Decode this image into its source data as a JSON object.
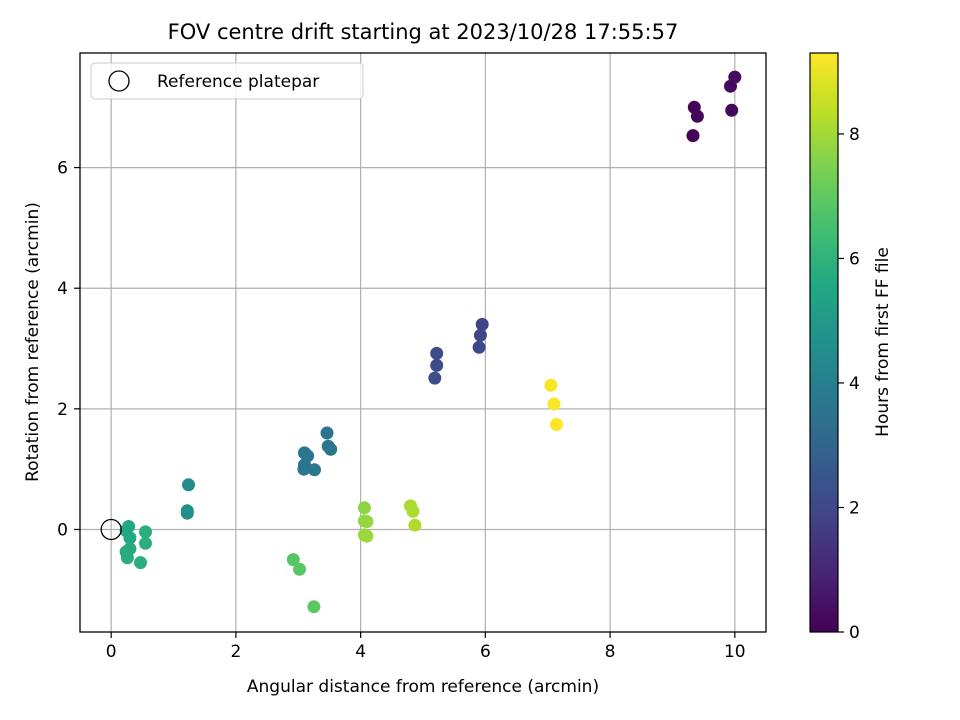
{
  "chart_data": {
    "type": "scatter",
    "title": "FOV centre drift starting at 2023/10/28 17:55:57",
    "xlabel": "Angular distance from reference (arcmin)",
    "ylabel": "Rotation from reference (arcmin)",
    "xlim": [
      -0.5,
      10.5
    ],
    "ylim": [
      -1.7,
      7.9
    ],
    "xticks": [
      0,
      2,
      4,
      6,
      8,
      10
    ],
    "yticks": [
      0,
      2,
      4,
      6
    ],
    "grid": true,
    "legend": {
      "position": "top-left",
      "entries": [
        "Reference platepar"
      ]
    },
    "reference_point": {
      "name": "Reference platepar",
      "x": 0,
      "y": 0
    },
    "colorbar": {
      "label": "Hours from first FF file",
      "range": [
        0,
        9.3
      ],
      "ticks": [
        0,
        2,
        4,
        6,
        8
      ],
      "colormap": "viridis"
    },
    "points": [
      {
        "x": 9.33,
        "y": 6.53,
        "t": 0.05
      },
      {
        "x": 9.35,
        "y": 7.0,
        "t": 0.1
      },
      {
        "x": 9.4,
        "y": 6.85,
        "t": 0.15
      },
      {
        "x": 9.95,
        "y": 6.95,
        "t": 0.2
      },
      {
        "x": 9.93,
        "y": 7.35,
        "t": 0.25
      },
      {
        "x": 10.0,
        "y": 7.5,
        "t": 0.3
      },
      {
        "x": 5.95,
        "y": 3.4,
        "t": 1.9
      },
      {
        "x": 5.92,
        "y": 3.22,
        "t": 1.95
      },
      {
        "x": 5.9,
        "y": 3.02,
        "t": 2.0
      },
      {
        "x": 5.22,
        "y": 2.92,
        "t": 2.1
      },
      {
        "x": 5.22,
        "y": 2.72,
        "t": 2.15
      },
      {
        "x": 5.19,
        "y": 2.51,
        "t": 2.2
      },
      {
        "x": 3.46,
        "y": 1.6,
        "t": 3.5
      },
      {
        "x": 3.1,
        "y": 1.27,
        "t": 3.55
      },
      {
        "x": 3.15,
        "y": 1.22,
        "t": 3.6
      },
      {
        "x": 3.48,
        "y": 1.38,
        "t": 3.6
      },
      {
        "x": 3.52,
        "y": 1.33,
        "t": 3.65
      },
      {
        "x": 3.1,
        "y": 1.07,
        "t": 3.65
      },
      {
        "x": 3.09,
        "y": 1.0,
        "t": 3.7
      },
      {
        "x": 3.26,
        "y": 0.99,
        "t": 3.7
      },
      {
        "x": 1.24,
        "y": 0.74,
        "t": 4.5
      },
      {
        "x": 1.22,
        "y": 0.31,
        "t": 4.55
      },
      {
        "x": 1.22,
        "y": 0.27,
        "t": 4.6
      },
      {
        "x": 0.28,
        "y": 0.05,
        "t": 5.5
      },
      {
        "x": 0.24,
        "y": -0.02,
        "t": 5.55
      },
      {
        "x": 0.3,
        "y": -0.14,
        "t": 5.6
      },
      {
        "x": 0.3,
        "y": -0.32,
        "t": 5.65
      },
      {
        "x": 0.24,
        "y": -0.37,
        "t": 5.7
      },
      {
        "x": 0.26,
        "y": -0.47,
        "t": 5.75
      },
      {
        "x": 0.47,
        "y": -0.55,
        "t": 5.8
      },
      {
        "x": 0.55,
        "y": -0.04,
        "t": 5.8
      },
      {
        "x": 0.55,
        "y": -0.23,
        "t": 5.85
      },
      {
        "x": 2.92,
        "y": -0.5,
        "t": 6.8
      },
      {
        "x": 3.02,
        "y": -0.66,
        "t": 6.85
      },
      {
        "x": 3.25,
        "y": -1.28,
        "t": 6.9
      },
      {
        "x": 4.06,
        "y": 0.36,
        "t": 7.7
      },
      {
        "x": 4.06,
        "y": 0.14,
        "t": 7.75
      },
      {
        "x": 4.1,
        "y": 0.13,
        "t": 7.8
      },
      {
        "x": 4.06,
        "y": -0.09,
        "t": 7.85
      },
      {
        "x": 4.1,
        "y": -0.11,
        "t": 7.9
      },
      {
        "x": 4.8,
        "y": 0.39,
        "t": 8.1
      },
      {
        "x": 4.84,
        "y": 0.3,
        "t": 8.15
      },
      {
        "x": 4.87,
        "y": 0.07,
        "t": 8.2
      },
      {
        "x": 7.05,
        "y": 2.39,
        "t": 9.2
      },
      {
        "x": 7.1,
        "y": 2.08,
        "t": 9.25
      },
      {
        "x": 7.14,
        "y": 1.74,
        "t": 9.3
      }
    ]
  }
}
